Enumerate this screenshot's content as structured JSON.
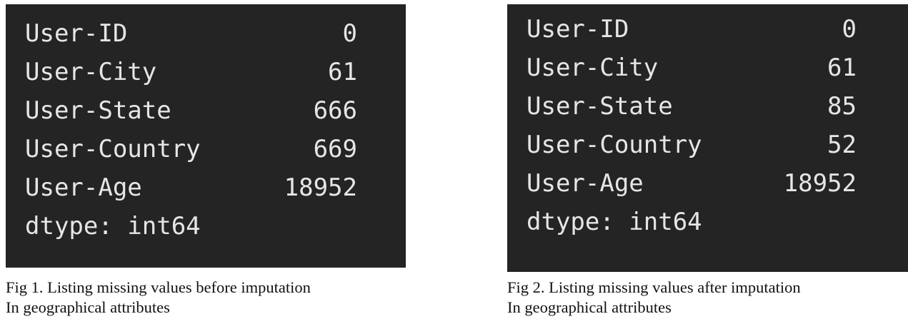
{
  "figures": [
    {
      "rows": [
        {
          "label": "User-ID",
          "value": "0"
        },
        {
          "label": "User-City",
          "value": "61"
        },
        {
          "label": "User-State",
          "value": "666"
        },
        {
          "label": "User-Country",
          "value": "669"
        },
        {
          "label": "User-Age",
          "value": "18952"
        }
      ],
      "dtype": "dtype: int64",
      "caption_line1": "Fig 1. Listing missing values before imputation",
      "caption_line2": "In geographical attributes"
    },
    {
      "rows": [
        {
          "label": "User-ID",
          "value": "0"
        },
        {
          "label": "User-City",
          "value": "61"
        },
        {
          "label": "User-State",
          "value": "85"
        },
        {
          "label": "User-Country",
          "value": "52"
        },
        {
          "label": "User-Age",
          "value": "18952"
        }
      ],
      "dtype": "dtype: int64",
      "caption_line1": "Fig 2. Listing missing values after imputation",
      "caption_line2": "In geographical attributes"
    }
  ],
  "colors": {
    "terminal_background": "#242424",
    "terminal_text": "#e6e6e6",
    "caption_text": "#111111"
  }
}
